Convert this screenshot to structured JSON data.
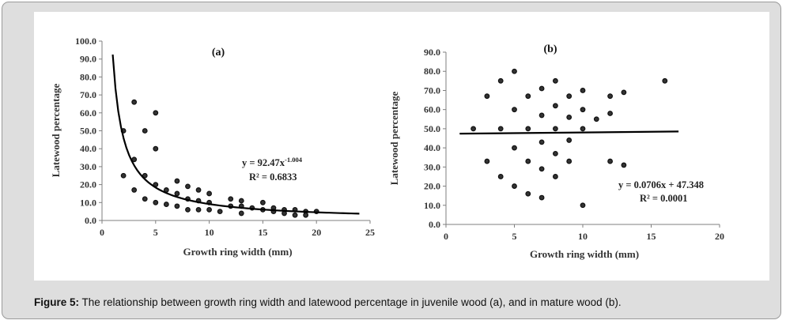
{
  "caption": {
    "label": "Figure 5:",
    "text": "The relationship between growth ring width and latewood percentage in juvenile wood (a), and in mature wood (b)."
  },
  "chart_data": [
    {
      "type": "scatter",
      "title": "(a)",
      "xlabel": "Growth ring width (mm)",
      "ylabel": "Latewood percentage",
      "xlim": [
        0,
        25
      ],
      "ylim": [
        0,
        100
      ],
      "xticks": [
        "0",
        "5",
        "10",
        "15",
        "20",
        "25"
      ],
      "yticks": [
        "0.0",
        "10.0",
        "20.0",
        "30.0",
        "40.0",
        "50.0",
        "60.0",
        "70.0",
        "80.0",
        "90.0",
        "100.0"
      ],
      "points": [
        [
          2,
          50
        ],
        [
          2,
          25
        ],
        [
          3,
          66
        ],
        [
          3,
          34
        ],
        [
          3,
          17
        ],
        [
          4,
          50
        ],
        [
          4,
          25
        ],
        [
          4,
          12
        ],
        [
          5,
          60
        ],
        [
          5,
          40
        ],
        [
          5,
          20
        ],
        [
          5,
          10
        ],
        [
          6,
          17
        ],
        [
          6,
          9
        ],
        [
          7,
          22
        ],
        [
          7,
          15
        ],
        [
          7,
          8
        ],
        [
          8,
          19
        ],
        [
          8,
          12
        ],
        [
          8,
          6
        ],
        [
          9,
          17
        ],
        [
          9,
          11
        ],
        [
          9,
          6
        ],
        [
          10,
          15
        ],
        [
          10,
          10
        ],
        [
          10,
          6
        ],
        [
          11,
          5
        ],
        [
          12,
          12
        ],
        [
          12,
          8
        ],
        [
          13,
          11
        ],
        [
          13,
          8
        ],
        [
          13,
          4
        ],
        [
          14,
          7
        ],
        [
          15,
          10
        ],
        [
          15,
          6
        ],
        [
          16,
          7
        ],
        [
          16,
          5
        ],
        [
          17,
          6
        ],
        [
          17,
          4
        ],
        [
          18,
          6
        ],
        [
          18,
          3
        ],
        [
          19,
          5
        ],
        [
          19,
          3
        ],
        [
          20,
          5
        ]
      ],
      "trendline": {
        "type": "power",
        "a": 92.47,
        "b": -1.004,
        "x_range": [
          1,
          24
        ]
      },
      "equation": "y = 92.47x",
      "equation_exponent": "-1.004",
      "r_squared": "R² = 0.6833"
    },
    {
      "type": "scatter",
      "title": "(b)",
      "xlabel": "Growth ring width (mm)",
      "ylabel": "Latewood percentage",
      "xlim": [
        0,
        20
      ],
      "ylim": [
        0,
        90
      ],
      "xticks": [
        "0",
        "5",
        "10",
        "15",
        "20"
      ],
      "yticks": [
        "0.0",
        "10.0",
        "20.0",
        "30.0",
        "40.0",
        "50.0",
        "60.0",
        "70.0",
        "80.0",
        "90.0"
      ],
      "points": [
        [
          2,
          50
        ],
        [
          3,
          67
        ],
        [
          3,
          33
        ],
        [
          4,
          75
        ],
        [
          4,
          50
        ],
        [
          4,
          25
        ],
        [
          5,
          80
        ],
        [
          5,
          60
        ],
        [
          5,
          40
        ],
        [
          5,
          20
        ],
        [
          6,
          67
        ],
        [
          6,
          50
        ],
        [
          6,
          33
        ],
        [
          6,
          16
        ],
        [
          7,
          71
        ],
        [
          7,
          57
        ],
        [
          7,
          43
        ],
        [
          7,
          29
        ],
        [
          7,
          14
        ],
        [
          8,
          75
        ],
        [
          8,
          62
        ],
        [
          8,
          50
        ],
        [
          8,
          37
        ],
        [
          8,
          25
        ],
        [
          9,
          67
        ],
        [
          9,
          56
        ],
        [
          9,
          44
        ],
        [
          9,
          33
        ],
        [
          10,
          70
        ],
        [
          10,
          60
        ],
        [
          10,
          50
        ],
        [
          10,
          10
        ],
        [
          11,
          55
        ],
        [
          12,
          67
        ],
        [
          12,
          58
        ],
        [
          12,
          33
        ],
        [
          13,
          69
        ],
        [
          13,
          31
        ],
        [
          16,
          75
        ]
      ],
      "trendline": {
        "type": "linear",
        "slope": 0.0706,
        "intercept": 47.348,
        "x_range": [
          1,
          17
        ]
      },
      "equation": "y = 0.0706x + 47.348",
      "r_squared": "R² = 0.0001"
    }
  ]
}
